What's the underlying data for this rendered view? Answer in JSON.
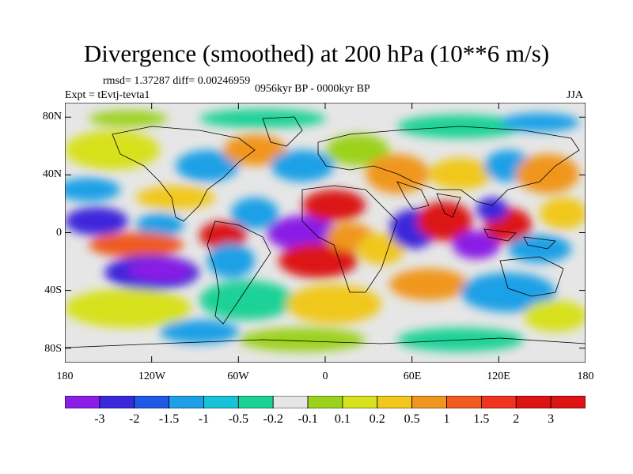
{
  "title": "Divergence (smoothed) at 200 hPa (10**6 m/s)",
  "stats": "rmsd= 1.37287 diff= 0.00246959",
  "experiment": "Expt = tEvtj-tevta1",
  "period": "0956kyr BP - 0000kyr BP",
  "season": "JJA",
  "lat_ticks": [
    "80N",
    "40N",
    "0",
    "40S",
    "80S"
  ],
  "lon_ticks": [
    "180",
    "120W",
    "60W",
    "0",
    "60E",
    "120E",
    "180"
  ],
  "colorbar": {
    "labels": [
      "-3",
      "-2",
      "-1.5",
      "-1",
      "-0.5",
      "-0.2",
      "-0.1",
      "0.1",
      "0.2",
      "0.5",
      "1",
      "1.5",
      "2",
      "3"
    ],
    "colors": [
      "#8a1ee6",
      "#3c28dc",
      "#1e5ae6",
      "#1ea0e6",
      "#19c3d7",
      "#1ed296",
      "#e6e6e6",
      "#9bd21e",
      "#d7e11e",
      "#f0c81e",
      "#f0961e",
      "#f05a1e",
      "#f0321e",
      "#dc1414"
    ]
  },
  "icons": [
    "world-map-coastlines"
  ]
}
